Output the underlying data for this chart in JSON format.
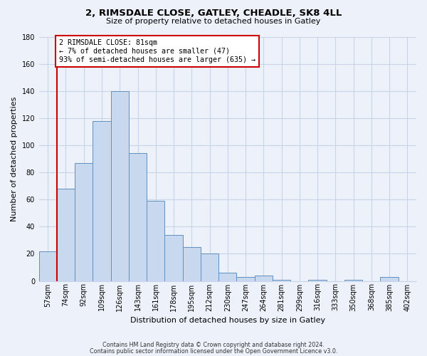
{
  "title": "2, RIMSDALE CLOSE, GATLEY, CHEADLE, SK8 4LL",
  "subtitle": "Size of property relative to detached houses in Gatley",
  "xlabel": "Distribution of detached houses by size in Gatley",
  "ylabel": "Number of detached properties",
  "categories": [
    "57sqm",
    "74sqm",
    "92sqm",
    "109sqm",
    "126sqm",
    "143sqm",
    "161sqm",
    "178sqm",
    "195sqm",
    "212sqm",
    "230sqm",
    "247sqm",
    "264sqm",
    "281sqm",
    "299sqm",
    "316sqm",
    "333sqm",
    "350sqm",
    "368sqm",
    "385sqm",
    "402sqm"
  ],
  "values": [
    22,
    68,
    87,
    118,
    140,
    94,
    59,
    34,
    25,
    20,
    6,
    3,
    4,
    1,
    0,
    1,
    0,
    1,
    0,
    3,
    0
  ],
  "bar_color": "#c8d8ee",
  "bar_edge_color": "#6090c0",
  "vline_color": "#cc0000",
  "annotation_title": "2 RIMSDALE CLOSE: 81sqm",
  "annotation_line1": "← 7% of detached houses are smaller (47)",
  "annotation_line2": "93% of semi-detached houses are larger (635) →",
  "annotation_box_color": "#ffffff",
  "annotation_box_edge": "#cc0000",
  "ylim": [
    0,
    180
  ],
  "yticks": [
    0,
    20,
    40,
    60,
    80,
    100,
    120,
    140,
    160,
    180
  ],
  "footer1": "Contains HM Land Registry data © Crown copyright and database right 2024.",
  "footer2": "Contains public sector information licensed under the Open Government Licence v3.0.",
  "bg_color": "#edf2fa",
  "grid_color": "#c8d4e8",
  "title_fontsize": 9.5,
  "subtitle_fontsize": 8.0,
  "axis_label_fontsize": 8.0,
  "tick_fontsize": 7.0,
  "footer_fontsize": 5.8
}
